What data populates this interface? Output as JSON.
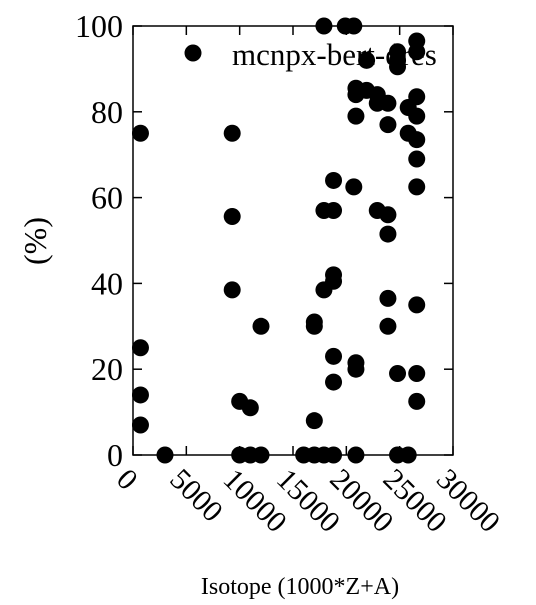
{
  "chart_data": {
    "type": "scatter",
    "xlabel": "Isotope (1000*Z+A)",
    "ylabel": "(%)",
    "xlim": [
      0,
      30000
    ],
    "ylim": [
      0,
      100
    ],
    "xticks": [
      0,
      5000,
      10000,
      15000,
      20000,
      25000,
      30000
    ],
    "yticks": [
      0,
      20,
      40,
      60,
      80,
      100
    ],
    "x_tick_labels": [
      "0",
      "5000",
      "10000",
      "15000",
      "20000",
      "25000",
      "30000"
    ],
    "y_tick_labels": [
      "0",
      "20",
      "40",
      "60",
      "80",
      "100"
    ],
    "legend": "top-right",
    "grid": false,
    "series": [
      {
        "name": "mcnpx-bert-dres",
        "color": "#000000",
        "points": [
          [
            700,
            75
          ],
          [
            700,
            25
          ],
          [
            700,
            14
          ],
          [
            700,
            7
          ],
          [
            3000,
            0
          ],
          [
            9300,
            75
          ],
          [
            9300,
            55.6
          ],
          [
            9300,
            38.5
          ],
          [
            10000,
            12.5
          ],
          [
            10000,
            0
          ],
          [
            11000,
            11
          ],
          [
            11000,
            0
          ],
          [
            12000,
            30
          ],
          [
            12000,
            0
          ],
          [
            16000,
            0
          ],
          [
            17000,
            31
          ],
          [
            17000,
            30
          ],
          [
            17000,
            8
          ],
          [
            17000,
            0
          ],
          [
            17900,
            100
          ],
          [
            17900,
            57
          ],
          [
            17900,
            38.5
          ],
          [
            17900,
            0
          ],
          [
            18800,
            64
          ],
          [
            18800,
            57
          ],
          [
            18800,
            42
          ],
          [
            18800,
            40.5
          ],
          [
            18800,
            23
          ],
          [
            18800,
            17
          ],
          [
            18800,
            0
          ],
          [
            19900,
            100
          ],
          [
            20700,
            100
          ],
          [
            20700,
            62.5
          ],
          [
            20900,
            85.5
          ],
          [
            20900,
            84
          ],
          [
            20900,
            79
          ],
          [
            20900,
            21.5
          ],
          [
            20900,
            20
          ],
          [
            20900,
            0
          ],
          [
            21900,
            92
          ],
          [
            21900,
            85
          ],
          [
            22900,
            84
          ],
          [
            22900,
            82
          ],
          [
            22900,
            57
          ],
          [
            23900,
            82
          ],
          [
            23900,
            77
          ],
          [
            23900,
            56
          ],
          [
            23900,
            51.5
          ],
          [
            23900,
            36.5
          ],
          [
            23900,
            30
          ],
          [
            24800,
            94
          ],
          [
            24800,
            92
          ],
          [
            24800,
            90.5
          ],
          [
            24800,
            19
          ],
          [
            24800,
            0
          ],
          [
            25800,
            81
          ],
          [
            25800,
            75
          ],
          [
            25800,
            0
          ],
          [
            26600,
            96.5
          ],
          [
            26600,
            94
          ],
          [
            26600,
            83.5
          ],
          [
            26600,
            79
          ],
          [
            26600,
            73.5
          ],
          [
            26600,
            69
          ],
          [
            26600,
            62.5
          ],
          [
            26600,
            35
          ],
          [
            26600,
            19
          ],
          [
            26600,
            12.5
          ]
        ]
      }
    ]
  }
}
